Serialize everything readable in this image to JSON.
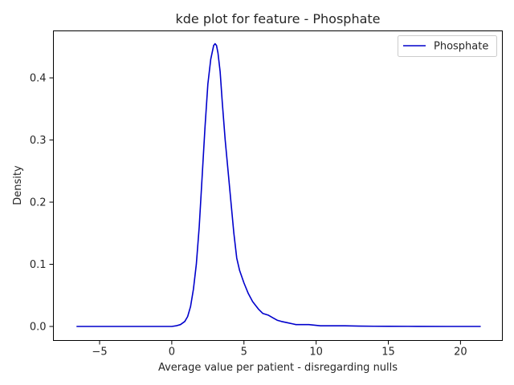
{
  "chart_data": {
    "type": "line",
    "title": "kde plot for feature -  Phosphate",
    "xlabel": "Average value per patient - disregarding nulls",
    "ylabel": "Density",
    "xlim": [
      -8.2,
      22.9
    ],
    "ylim": [
      -0.0226,
      0.4756
    ],
    "xticks": [
      -5,
      0,
      5,
      10,
      15,
      20
    ],
    "xtick_labels": [
      "−5",
      "0",
      "5",
      "10",
      "15",
      "20"
    ],
    "yticks": [
      0.0,
      0.1,
      0.2,
      0.3,
      0.4
    ],
    "ytick_labels": [
      "0.0",
      "0.1",
      "0.2",
      "0.3",
      "0.4"
    ],
    "grid": false,
    "legend_position": "top-right",
    "series": [
      {
        "name": "Phosphate",
        "color": "#0000cc",
        "x": [
          -6.6,
          -5.0,
          -3.0,
          -1.0,
          0.0,
          0.3,
          0.6,
          0.9,
          1.1,
          1.3,
          1.5,
          1.7,
          1.9,
          2.1,
          2.3,
          2.5,
          2.7,
          2.9,
          3.0,
          3.1,
          3.2,
          3.35,
          3.5,
          3.7,
          3.9,
          4.1,
          4.3,
          4.5,
          4.7,
          5.0,
          5.3,
          5.6,
          6.0,
          6.3,
          6.7,
          7.0,
          7.3,
          7.6,
          8.0,
          8.4,
          8.6,
          9.0,
          9.5,
          9.9,
          10.3,
          11.0,
          12.0,
          13.0,
          14.0,
          15.0,
          17.0,
          19.0,
          21.4
        ],
        "values": [
          0.0,
          0.0,
          0.0,
          0.0,
          0.0,
          0.001,
          0.003,
          0.008,
          0.016,
          0.032,
          0.06,
          0.1,
          0.16,
          0.24,
          0.32,
          0.39,
          0.43,
          0.452,
          0.455,
          0.452,
          0.44,
          0.41,
          0.36,
          0.3,
          0.25,
          0.2,
          0.15,
          0.11,
          0.09,
          0.07,
          0.053,
          0.04,
          0.028,
          0.021,
          0.018,
          0.014,
          0.01,
          0.008,
          0.006,
          0.004,
          0.003,
          0.003,
          0.003,
          0.002,
          0.001,
          0.001,
          0.001,
          0.0005,
          0.0003,
          0.0002,
          0.0001,
          0.0,
          0.0
        ]
      }
    ]
  }
}
